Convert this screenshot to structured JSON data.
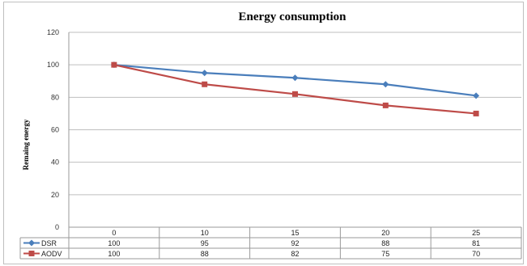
{
  "chart_data": {
    "type": "line",
    "title": "Energy consumption",
    "ylabel": "Remaing energy",
    "xlabel": "",
    "ylim": [
      0,
      120
    ],
    "yticks": [
      0,
      20,
      40,
      60,
      80,
      100,
      120
    ],
    "categories": [
      "0",
      "10",
      "15",
      "20",
      "25"
    ],
    "series": [
      {
        "name": "DSR",
        "values": [
          100,
          95,
          92,
          88,
          81
        ],
        "color": "#4a7ebb",
        "marker": "diamond"
      },
      {
        "name": "AODV",
        "values": [
          100,
          88,
          82,
          75,
          70
        ],
        "color": "#be4b48",
        "marker": "square"
      }
    ],
    "grid": true,
    "legend": "data-table-left"
  }
}
